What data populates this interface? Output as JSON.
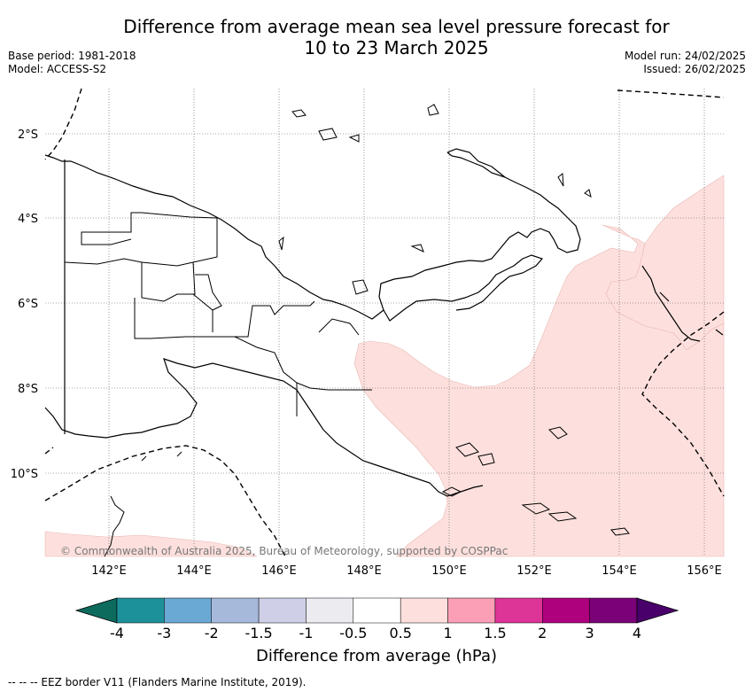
{
  "title_line1": "Difference from average mean sea level pressure forecast for",
  "title_line2": "10 to 23 March 2025",
  "base_period": "Base period: 1981-2018",
  "model": "Model: ACCESS-S2",
  "model_run": "Model run: 24/02/2025",
  "issued": "Issued: 26/02/2025",
  "lat_labels": [
    "2°S",
    "4°S",
    "6°S",
    "8°S",
    "10°S"
  ],
  "lon_labels": [
    "142°E",
    "144°E",
    "146°E",
    "148°E",
    "150°E",
    "152°E",
    "154°E",
    "156°E"
  ],
  "copyright": "© Commonwealth of Australia 2025, Bureau of Meteorology, supported by COSPPac",
  "colorbar": {
    "ticks": [
      "-4",
      "-3",
      "-2",
      "-1.5",
      "-1",
      "-0.5",
      "0.5",
      "1",
      "1.5",
      "2",
      "3",
      "4"
    ],
    "colors": [
      "#0d6b5e",
      "#1d9199",
      "#6aa9d3",
      "#a7b9da",
      "#cfd0e7",
      "#ecebf0",
      "#ffffff",
      "#fde0dd",
      "#fa9fb5",
      "#dd3497",
      "#ae017e",
      "#7a0177",
      "#49006a"
    ],
    "label": "Difference from average (hPa)"
  },
  "legend_note": "--  --  -- EEZ border V11 (Flanders Marine Institute, 2019).",
  "anomaly_color": "#fde0dd"
}
